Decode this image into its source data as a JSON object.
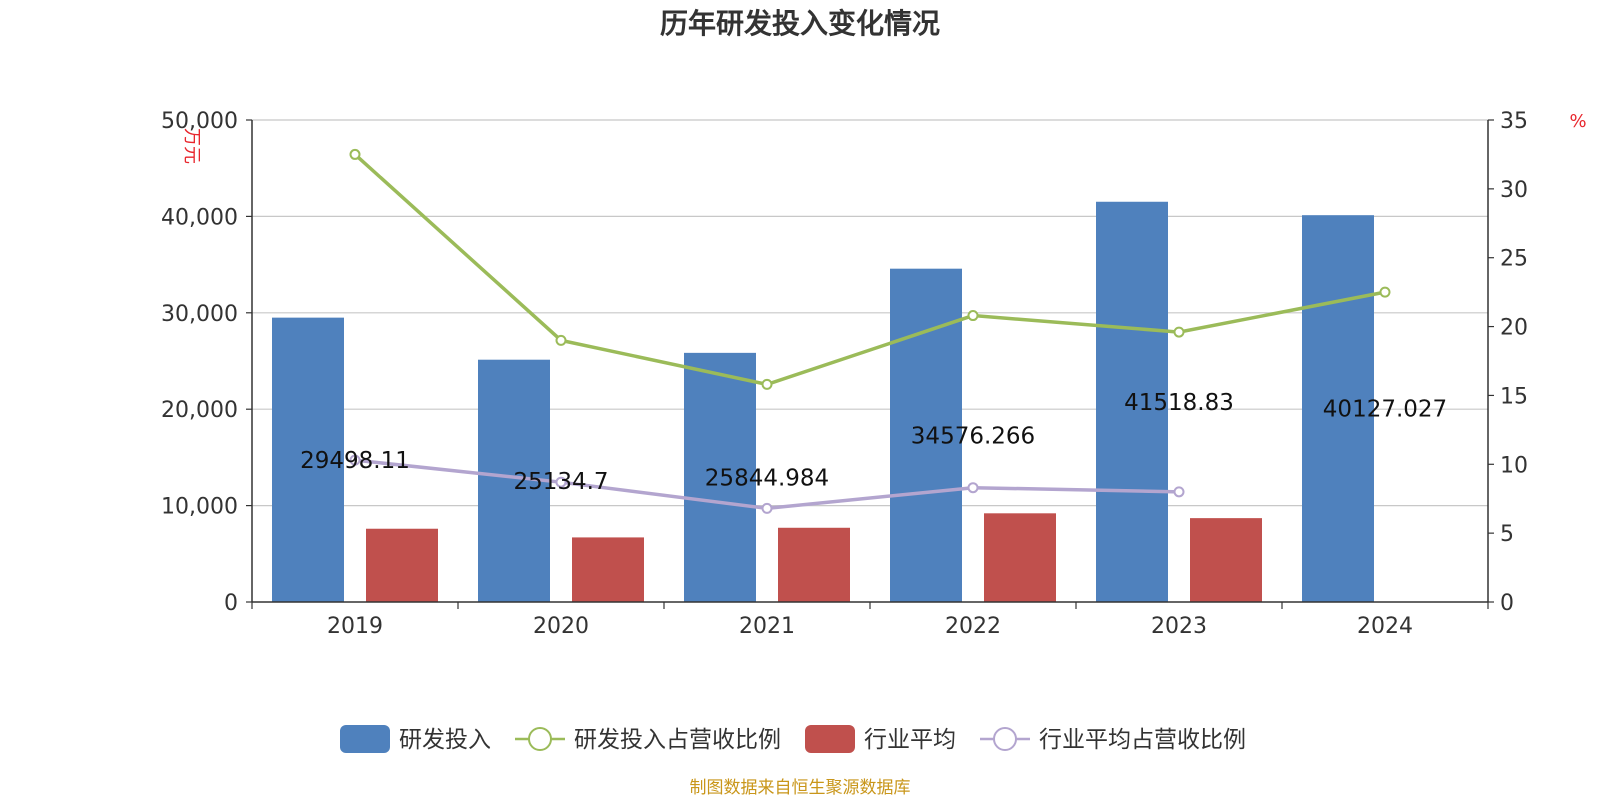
{
  "chart_data": {
    "type": "bar",
    "title": "历年研发投入变化情况",
    "categories": [
      "2019",
      "2020",
      "2021",
      "2022",
      "2023",
      "2024"
    ],
    "y_left": {
      "unit": "万元",
      "min": 0,
      "max": 50000,
      "ticks": [
        "0",
        "10,000",
        "20,000",
        "30,000",
        "40,000",
        "50,000"
      ]
    },
    "y_right": {
      "unit": "%",
      "min": 0,
      "max": 35,
      "ticks": [
        "0",
        "5",
        "10",
        "15",
        "20",
        "25",
        "30",
        "35"
      ]
    },
    "series": [
      {
        "name": "研发投入",
        "type": "bar",
        "axis": "left",
        "color": "#4f81bd",
        "values": [
          29498.11,
          25134.7,
          25844.984,
          34576.266,
          41518.83,
          40127.027
        ],
        "labels": [
          "29498.11",
          "25134.7",
          "25844.984",
          "34576.266",
          "41518.83",
          "40127.027"
        ]
      },
      {
        "name": "研发投入占营收比例",
        "type": "line",
        "axis": "right",
        "color": "#9bbb59",
        "values": [
          32.5,
          19.0,
          15.8,
          20.8,
          19.6,
          22.5
        ]
      },
      {
        "name": "行业平均",
        "type": "bar",
        "axis": "left",
        "color": "#c0504d",
        "values": [
          7600,
          6700,
          7700,
          9200,
          8700,
          null
        ]
      },
      {
        "name": "行业平均占营收比例",
        "type": "line",
        "axis": "right",
        "color": "#b3a5cf",
        "values": [
          10.3,
          8.7,
          6.8,
          8.3,
          8.0,
          null
        ]
      }
    ],
    "grid": true,
    "legend": "bottom-center"
  },
  "footer": "制图数据来自恒生聚源数据库"
}
